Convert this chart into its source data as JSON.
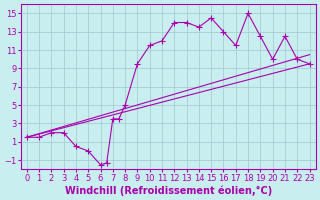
{
  "background_color": "#c8eef0",
  "grid_color": "#a0c8d0",
  "line_color": "#aa00aa",
  "xlabel": "Windchill (Refroidissement éolien,°C)",
  "xlabel_fontsize": 7,
  "tick_fontsize": 6,
  "xlim": [
    -0.5,
    23.5
  ],
  "ylim": [
    -2,
    16
  ],
  "yticks": [
    -1,
    1,
    3,
    5,
    7,
    9,
    11,
    13,
    15
  ],
  "xticks": [
    0,
    1,
    2,
    3,
    4,
    5,
    6,
    7,
    8,
    9,
    10,
    11,
    12,
    13,
    14,
    15,
    16,
    17,
    18,
    19,
    20,
    21,
    22,
    23
  ],
  "line1_x": [
    0,
    23
  ],
  "line1_y": [
    1.5,
    9.5
  ],
  "line2_x": [
    0,
    23
  ],
  "line2_y": [
    1.5,
    10.5
  ],
  "curve_x": [
    0,
    1,
    2,
    3,
    4,
    5,
    6,
    6.5,
    7,
    7.5,
    8,
    9,
    10,
    11,
    12,
    13,
    14,
    15,
    16,
    17,
    18,
    19,
    20,
    21,
    22,
    23
  ],
  "curve_y": [
    1.5,
    1.5,
    2.0,
    2.0,
    0.5,
    0.0,
    -1.5,
    -1.3,
    3.5,
    3.5,
    5.0,
    9.5,
    11.5,
    12.0,
    14.0,
    14.0,
    13.5,
    14.5,
    13.0,
    11.5,
    15.0,
    12.5,
    10.0,
    12.5,
    10.0,
    9.5
  ]
}
